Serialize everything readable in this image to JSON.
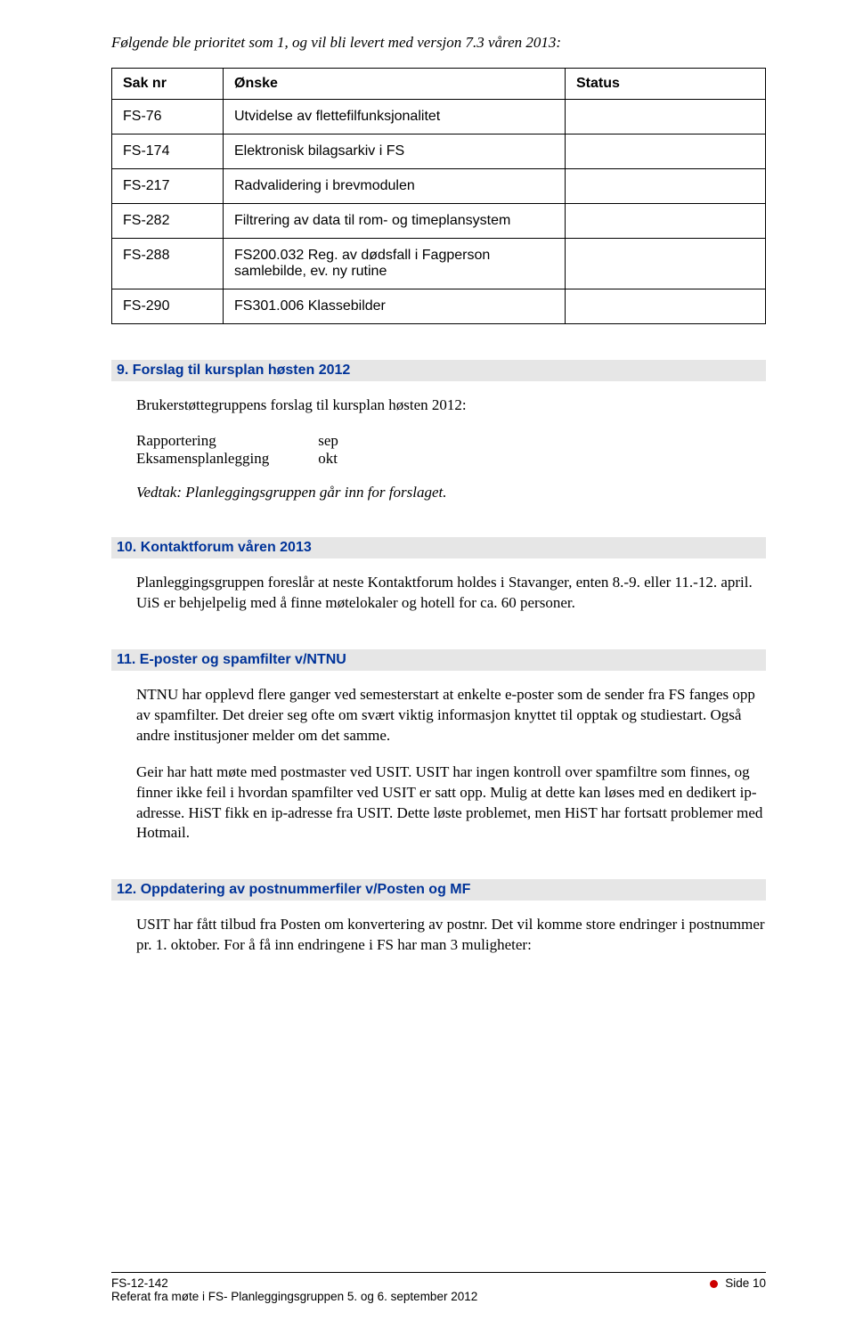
{
  "intro": "Følgende ble prioritet som 1, og vil bli levert med versjon 7.3 våren 2013:",
  "table": {
    "headers": [
      "Sak nr",
      "Ønske",
      "Status"
    ],
    "rows": [
      [
        "FS-76",
        "Utvidelse av flettefilfunksjonalitet",
        ""
      ],
      [
        "FS-174",
        "Elektronisk bilagsarkiv i FS",
        ""
      ],
      [
        "FS-217",
        "Radvalidering i brevmodulen",
        ""
      ],
      [
        "FS-282",
        "Filtrering av data til rom- og timeplansystem",
        ""
      ],
      [
        "FS-288",
        "FS200.032 Reg. av dødsfall i Fagperson samlebilde, ev. ny rutine",
        ""
      ],
      [
        "FS-290",
        "FS301.006 Klassebilder",
        ""
      ]
    ]
  },
  "sections": {
    "s9": {
      "heading": "9.  Forslag til kursplan høsten 2012",
      "intro": "Brukerstøttegruppens forslag til kursplan høsten 2012:",
      "lines": [
        {
          "label": "Rapportering",
          "val": "sep"
        },
        {
          "label": "Eksamensplanlegging",
          "val": "okt"
        }
      ],
      "vedtak": "Vedtak: Planleggingsgruppen går inn for forslaget."
    },
    "s10": {
      "heading": "10. Kontaktforum våren 2013",
      "body": "Planleggingsgruppen foreslår at neste Kontaktforum holdes i Stavanger, enten 8.-9. eller 11.-12. april. UiS er behjelpelig med å finne møtelokaler og hotell for ca. 60 personer."
    },
    "s11": {
      "heading": "11. E-poster og spamfilter v/NTNU",
      "p1": "NTNU har opplevd flere ganger ved semesterstart at enkelte e-poster som de sender fra FS fanges opp av spamfilter. Det dreier seg ofte om svært viktig informasjon knyttet til opptak og studiestart. Også andre institusjoner melder om det samme.",
      "p2": "Geir har hatt møte med postmaster ved USIT. USIT har ingen kontroll over spamfiltre som finnes, og finner ikke feil i hvordan spamfilter ved USIT er satt opp. Mulig at dette kan løses med en dedikert ip-adresse. HiST fikk en ip-adresse fra USIT. Dette løste problemet, men HiST har fortsatt problemer med Hotmail."
    },
    "s12": {
      "heading": "12. Oppdatering av postnummerfiler v/Posten og MF",
      "body": "USIT har fått tilbud fra Posten om konvertering av postnr. Det vil komme store endringer i postnummer pr. 1. oktober. For å få inn endringene i FS har man 3 muligheter:"
    }
  },
  "footer": {
    "left1": "FS-12-142",
    "left2": "Referat fra møte i FS- Planleggingsgruppen 5. og 6. september 2012",
    "right": "Side 10"
  },
  "colors": {
    "heading_bg": "#e6e6e6",
    "heading_fg": "#003399",
    "bullet": "#cc0000"
  }
}
